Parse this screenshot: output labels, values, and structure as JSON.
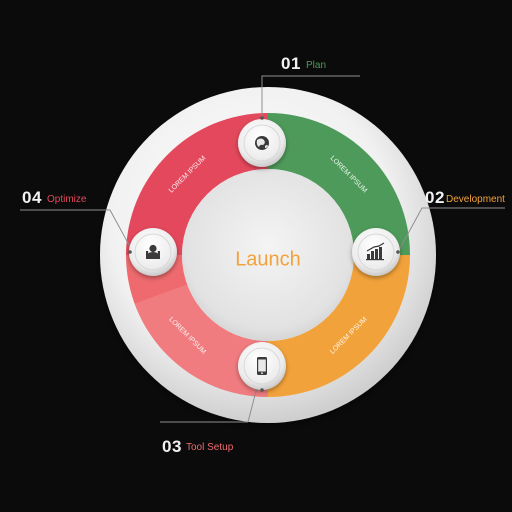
{
  "center": {
    "text": "Launch",
    "color": "#f2a23a"
  },
  "segments": [
    {
      "id": "plan",
      "number": "01",
      "label": "Plan",
      "color": "#4e9a5a",
      "label_color": "#4e9a5a",
      "icon": "globe-icon",
      "caption": "LOREM IPSUM"
    },
    {
      "id": "develop",
      "number": "02",
      "label": "Development",
      "color": "#f2a23a",
      "label_color": "#f2a23a",
      "icon": "bar-chart-icon",
      "caption": "LOREM IPSUM"
    },
    {
      "id": "tool",
      "number": "03",
      "label": "Tool Setup",
      "color": "#ee6a6e",
      "label_color": "#ee6a6e",
      "icon": "phone-icon",
      "caption": "LOREM IPSUM"
    },
    {
      "id": "optimize",
      "number": "04",
      "label": "Optimize",
      "color": "#e4485c",
      "label_color": "#e4485c",
      "icon": "user-icon",
      "caption": "LOREM IPSUM"
    }
  ]
}
